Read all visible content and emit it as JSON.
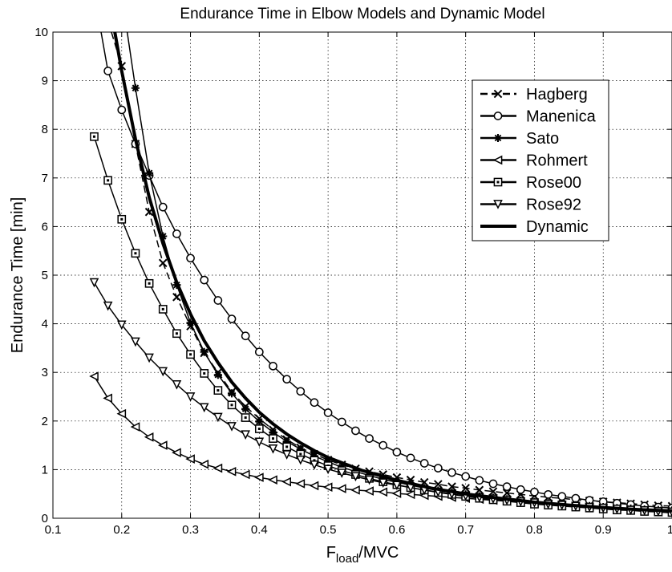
{
  "chart_data": {
    "type": "line",
    "title": "Endurance Time in Elbow Models and Dynamic Model",
    "xlabel": {
      "main": "F",
      "subscript": "load",
      "suffix": "/MVC"
    },
    "ylabel": "Endurance Time [min]",
    "xlim": [
      0.1,
      1
    ],
    "ylim": [
      0,
      10
    ],
    "xticks": [
      0.1,
      0.2,
      0.3,
      0.4,
      0.5,
      0.6,
      0.7,
      0.8,
      0.9,
      1
    ],
    "yticks": [
      0,
      1,
      2,
      3,
      4,
      5,
      6,
      7,
      8,
      9,
      10
    ],
    "grid": true,
    "legend_position": "top-right",
    "x": [
      0.16,
      0.18,
      0.2,
      0.22,
      0.24,
      0.26,
      0.28,
      0.3,
      0.32,
      0.34,
      0.36,
      0.38,
      0.4,
      0.42,
      0.44,
      0.46,
      0.48,
      0.5,
      0.52,
      0.54,
      0.56,
      0.58,
      0.6,
      0.62,
      0.64,
      0.66,
      0.68,
      0.7,
      0.72,
      0.74,
      0.76,
      0.78,
      0.8,
      0.82,
      0.84,
      0.86,
      0.88,
      0.9,
      0.92,
      0.94,
      0.96,
      0.98,
      1.0
    ],
    "series": [
      {
        "name": "Hagberg",
        "marker": "x",
        "dash": true,
        "x_start": 0.2,
        "values": [
          null,
          null,
          9.3,
          7.7,
          6.3,
          5.25,
          4.55,
          3.95,
          3.4,
          3.0,
          2.6,
          2.3,
          2.05,
          1.82,
          1.62,
          1.45,
          1.32,
          1.2,
          1.1,
          1.02,
          0.96,
          0.9,
          0.84,
          0.79,
          0.74,
          0.7,
          0.65,
          0.62,
          0.58,
          0.55,
          0.52,
          0.49,
          0.46,
          0.43,
          0.41,
          0.38,
          0.36,
          0.34,
          0.32,
          0.3,
          0.28,
          0.26,
          0.25
        ]
      },
      {
        "name": "Manenica",
        "marker": "o",
        "dash": false,
        "x_start": 0.18,
        "values": [
          null,
          9.2,
          8.4,
          7.7,
          7.05,
          6.4,
          5.85,
          5.35,
          4.9,
          4.48,
          4.1,
          3.75,
          3.42,
          3.13,
          2.86,
          2.61,
          2.38,
          2.17,
          1.98,
          1.8,
          1.64,
          1.5,
          1.36,
          1.24,
          1.13,
          1.03,
          0.94,
          0.86,
          0.78,
          0.71,
          0.65,
          0.59,
          0.54,
          0.49,
          0.45,
          0.41,
          0.37,
          0.34,
          0.31,
          0.28,
          0.25,
          0.23,
          0.21
        ]
      },
      {
        "name": "Sato",
        "marker": "*",
        "dash": false,
        "x_start": 0.22,
        "values": [
          null,
          null,
          null,
          8.85,
          7.1,
          5.8,
          4.8,
          4.02,
          3.42,
          2.95,
          2.57,
          2.25,
          1.99,
          1.77,
          1.58,
          1.42,
          1.28,
          1.16,
          1.05,
          0.96,
          0.88,
          0.8,
          0.74,
          0.68,
          0.62,
          0.57,
          0.53,
          0.49,
          0.45,
          0.42,
          0.39,
          0.36,
          0.33,
          0.31,
          0.29,
          0.27,
          0.25,
          0.23,
          0.21,
          0.2,
          0.18,
          0.17,
          0.16
        ]
      },
      {
        "name": "Rohmert",
        "marker": "<",
        "dash": false,
        "x_start": 0.16,
        "values": [
          2.92,
          2.47,
          2.15,
          1.88,
          1.67,
          1.5,
          1.35,
          1.22,
          1.11,
          1.03,
          0.96,
          0.9,
          0.84,
          0.79,
          0.75,
          0.71,
          0.67,
          0.64,
          0.61,
          0.58,
          0.56,
          0.54,
          0.51,
          0.49,
          0.47,
          0.45,
          0.43,
          0.41,
          0.39,
          0.37,
          0.35,
          0.33,
          0.31,
          0.29,
          0.27,
          0.25,
          0.23,
          0.21,
          0.19,
          0.17,
          0.15,
          0.13,
          0.11
        ]
      },
      {
        "name": "Rose00",
        "marker": "s",
        "dash": false,
        "x_start": 0.16,
        "values": [
          7.85,
          6.95,
          6.15,
          5.45,
          4.83,
          4.3,
          3.8,
          3.37,
          2.98,
          2.63,
          2.33,
          2.07,
          1.84,
          1.64,
          1.47,
          1.32,
          1.19,
          1.08,
          0.98,
          0.9,
          0.82,
          0.75,
          0.69,
          0.63,
          0.58,
          0.53,
          0.49,
          0.45,
          0.41,
          0.38,
          0.35,
          0.32,
          0.29,
          0.27,
          0.25,
          0.23,
          0.21,
          0.19,
          0.17,
          0.16,
          0.14,
          0.13,
          0.12
        ]
      },
      {
        "name": "Rose92",
        "marker": "v",
        "dash": false,
        "x_start": 0.16,
        "values": [
          4.85,
          4.37,
          3.98,
          3.63,
          3.3,
          3.02,
          2.75,
          2.5,
          2.28,
          2.08,
          1.89,
          1.72,
          1.57,
          1.43,
          1.31,
          1.2,
          1.1,
          1.01,
          0.93,
          0.86,
          0.79,
          0.73,
          0.68,
          0.63,
          0.58,
          0.54,
          0.5,
          0.46,
          0.43,
          0.4,
          0.37,
          0.34,
          0.32,
          0.29,
          0.27,
          0.25,
          0.23,
          0.21,
          0.19,
          0.17,
          0.16,
          0.14,
          0.13
        ]
      },
      {
        "name": "Dynamic",
        "marker": "",
        "dash": false,
        "thick": true,
        "x_start": 0.19,
        "points": [
          [
            0.19,
            10.0
          ],
          [
            0.2,
            9.2
          ],
          [
            0.22,
            7.8
          ],
          [
            0.24,
            6.6
          ],
          [
            0.26,
            5.65
          ],
          [
            0.28,
            4.85
          ],
          [
            0.3,
            4.2
          ],
          [
            0.32,
            3.65
          ],
          [
            0.34,
            3.2
          ],
          [
            0.36,
            2.8
          ],
          [
            0.38,
            2.47
          ],
          [
            0.4,
            2.18
          ],
          [
            0.42,
            1.94
          ],
          [
            0.44,
            1.73
          ],
          [
            0.46,
            1.55
          ],
          [
            0.48,
            1.39
          ],
          [
            0.5,
            1.25
          ],
          [
            0.55,
            0.98
          ],
          [
            0.6,
            0.78
          ],
          [
            0.65,
            0.62
          ],
          [
            0.7,
            0.5
          ],
          [
            0.75,
            0.41
          ],
          [
            0.8,
            0.33
          ],
          [
            0.85,
            0.27
          ],
          [
            0.9,
            0.22
          ],
          [
            0.95,
            0.18
          ],
          [
            1.0,
            0.15
          ]
        ]
      }
    ]
  }
}
